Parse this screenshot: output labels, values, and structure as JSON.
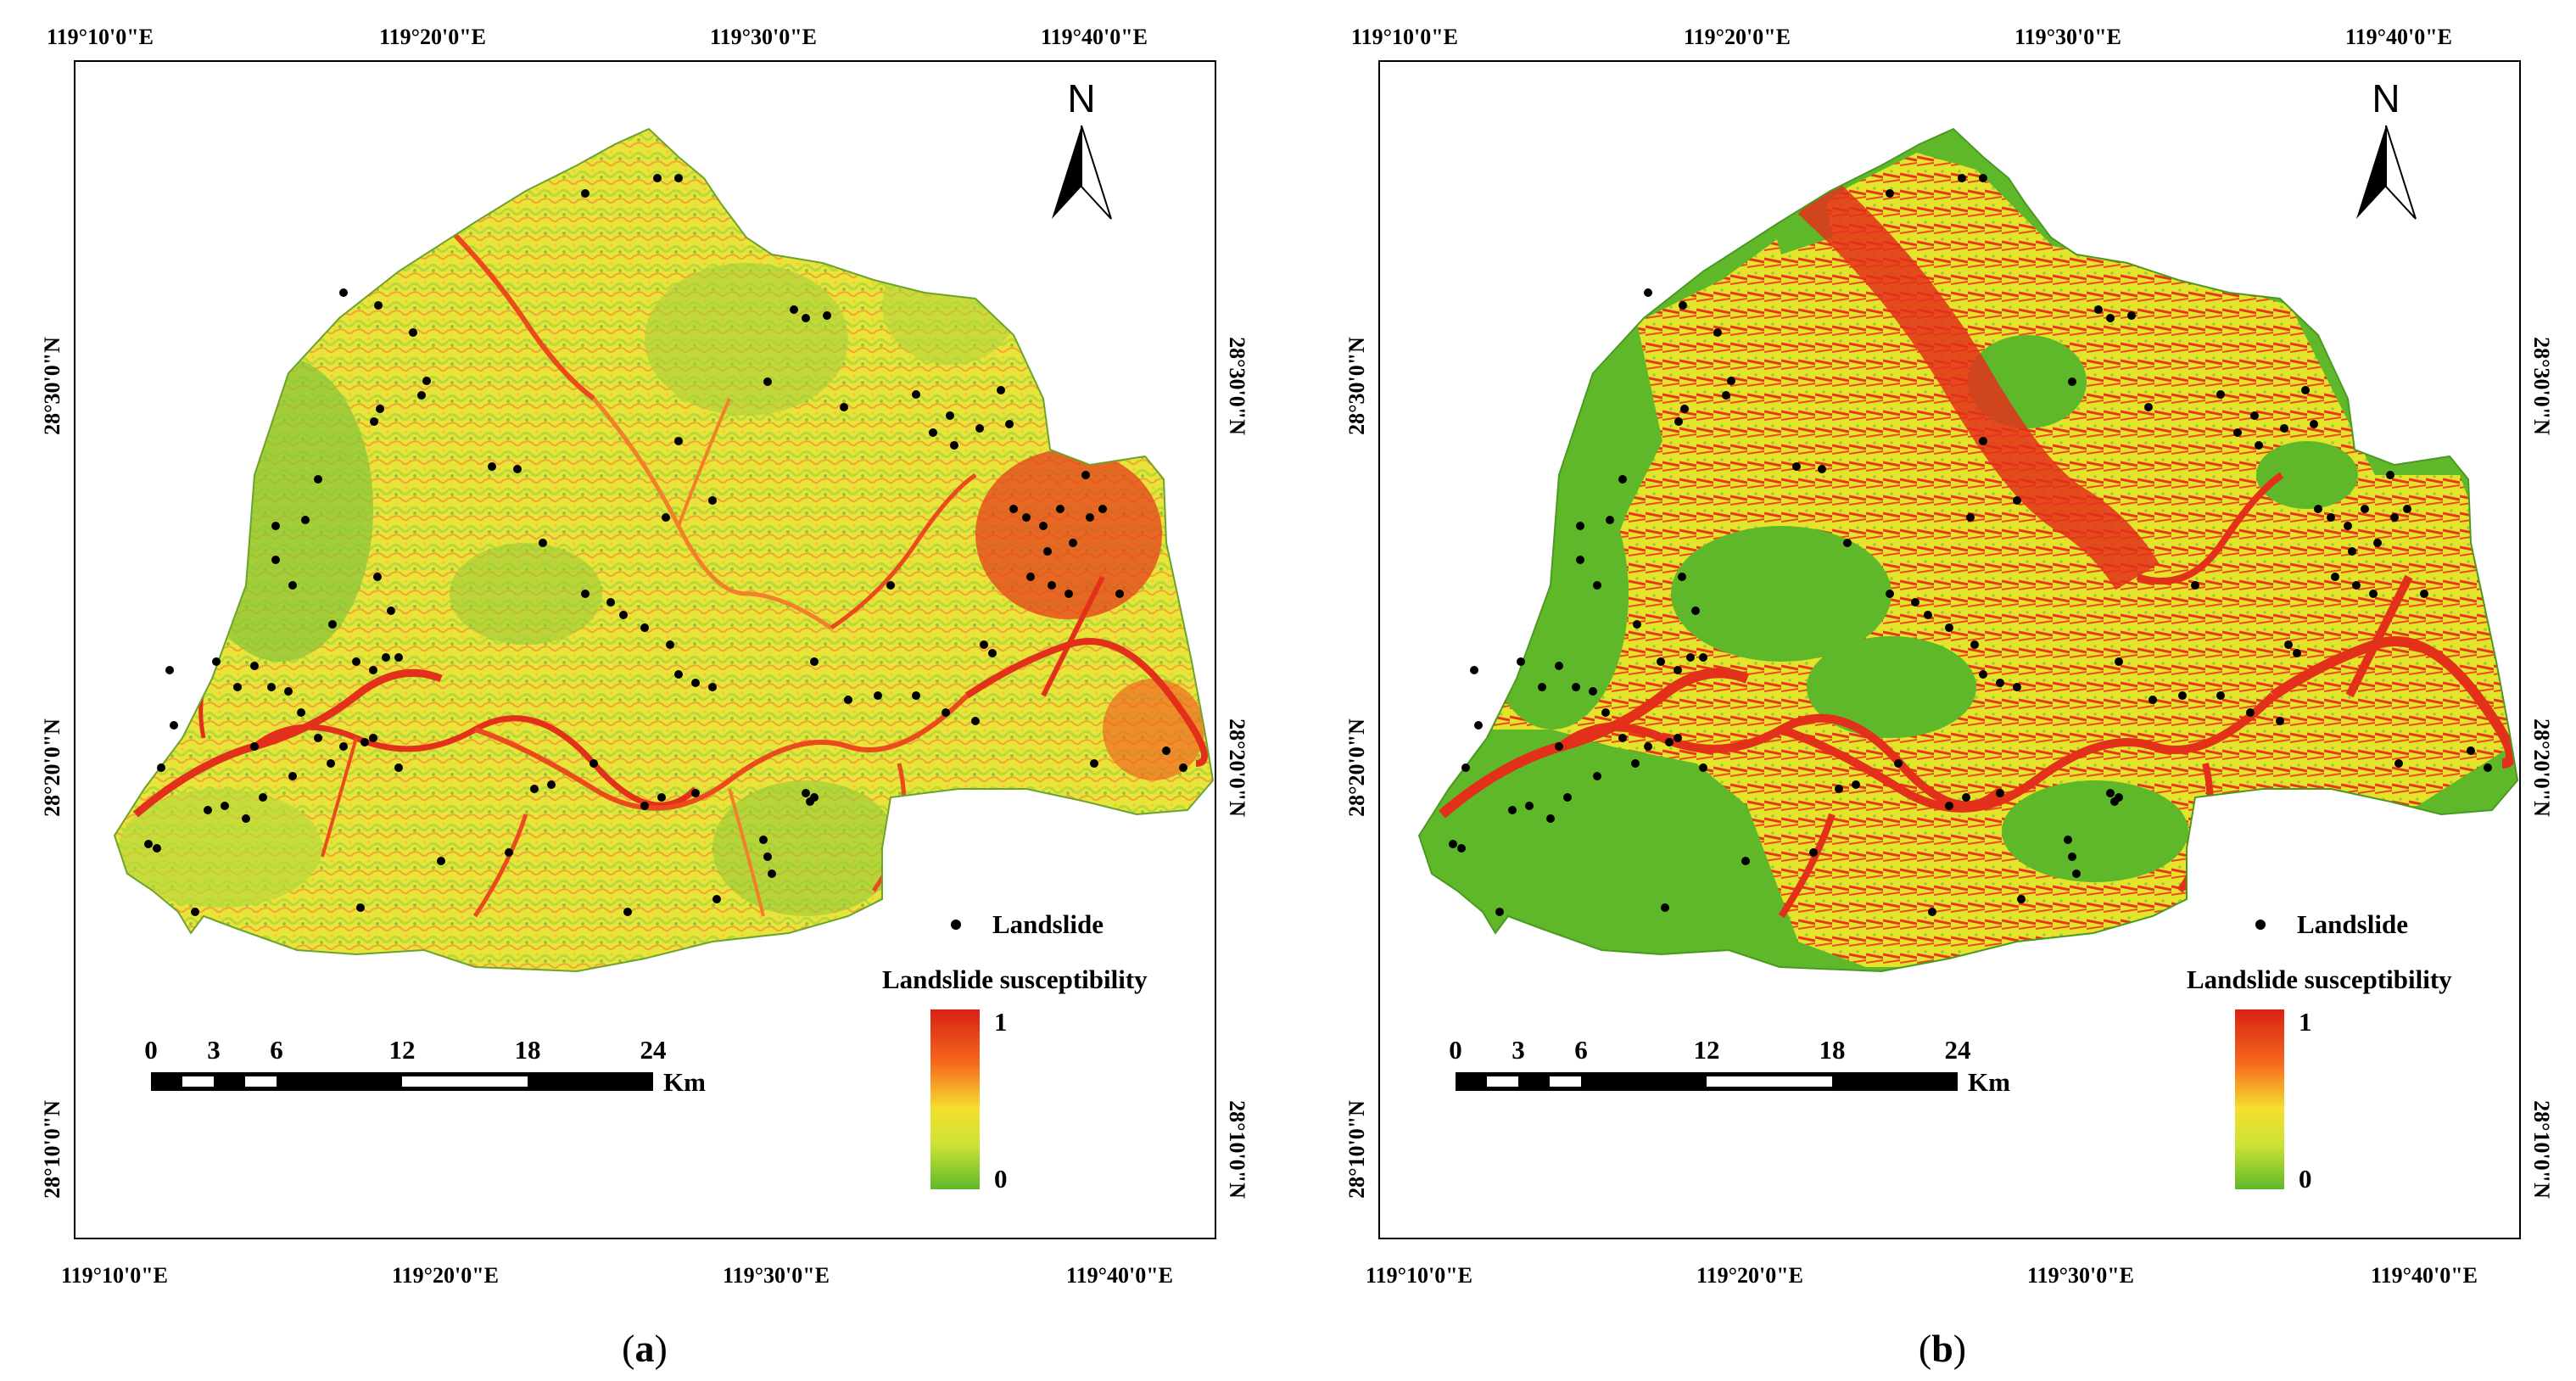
{
  "panels": [
    {
      "id": "a",
      "caption_open": "(",
      "caption_letter": "a",
      "caption_close": ")",
      "style": "continuous"
    },
    {
      "id": "b",
      "caption_open": "(",
      "caption_letter": "b",
      "caption_close": ")",
      "style": "classified"
    }
  ],
  "axes": {
    "lon_ticks_top": [
      "119°10'0\"E",
      "119°20'0\"E",
      "119°30'0\"E",
      "119°40'0\"E"
    ],
    "lon_ticks_bottom": [
      "119°10'0\"E",
      "119°20'0\"E",
      "119°30'0\"E",
      "119°40'0\"E"
    ],
    "lat_ticks": [
      "28°30'0\"N",
      "28°20'0\"N",
      "28°10'0\"N"
    ]
  },
  "north_label": "N",
  "legend": {
    "point_label": "Landslide",
    "ramp_title": "Landslide susceptibility",
    "ramp_high": "1",
    "ramp_low": "0",
    "ramp_colors": [
      "#d92014",
      "#f56a1e",
      "#f5df2e",
      "#cde234",
      "#5fb82a"
    ]
  },
  "scale_bar": {
    "labels": [
      "0",
      "3",
      "6",
      "12",
      "18",
      "24"
    ],
    "unit": "Km"
  },
  "colors": {
    "low": "#5fb82a",
    "mid_low": "#c9e035",
    "mid": "#f2e22c",
    "mid_high": "#f29226",
    "high": "#e3301b",
    "landslide_point": "#000000"
  }
}
